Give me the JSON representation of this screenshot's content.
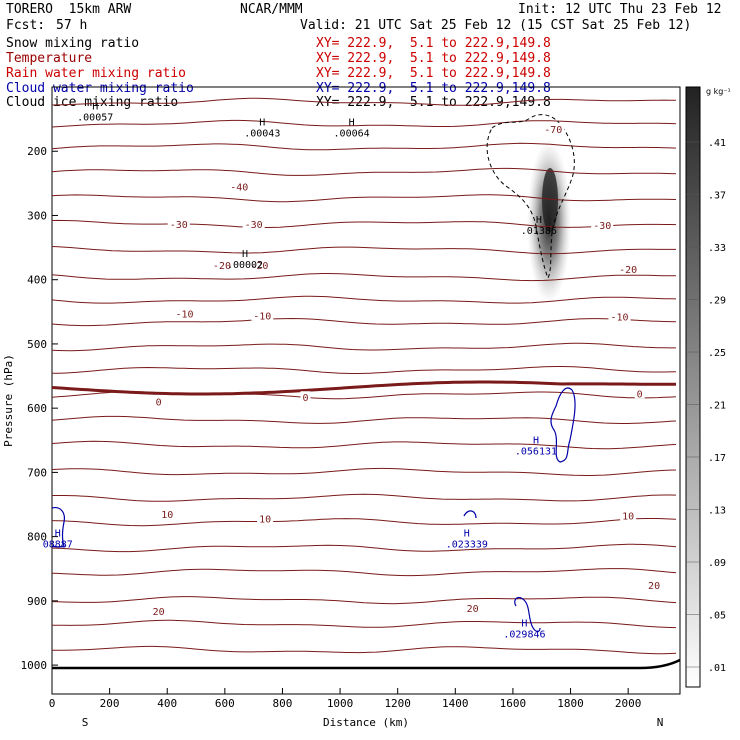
{
  "header": {
    "model": "TORERO  15km ARW",
    "org": "NCAR/MMM",
    "init": "Init: 12 UTC Thu 23 Feb 12",
    "fcst_label": "Fcst:",
    "fcst_value": "57 h",
    "valid": "Valid: 21 UTC Sat 25 Feb 12 (15 CST Sat 25 Feb 12)"
  },
  "fields": [
    {
      "name": "Snow mixing ratio",
      "xy": "XY= 222.9,  5.1 to 222.9,149.8",
      "name_color": "#000000",
      "xy_color": "#cc0000"
    },
    {
      "name": "Temperature",
      "xy": "XY= 222.9,  5.1 to 222.9,149.8",
      "name_color": "#990000",
      "xy_color": "#cc0000"
    },
    {
      "name": "Rain water mixing ratio",
      "xy": "XY= 222.9,  5.1 to 222.9,149.8",
      "name_color": "#cc0000",
      "xy_color": "#cc0000"
    },
    {
      "name": "Cloud water mixing ratio",
      "xy": "XY= 222.9,  5.1 to 222.9,149.8",
      "name_color": "#0000aa",
      "xy_color": "#0000aa"
    },
    {
      "name": "Cloud ice mixing ratio",
      "xy": "XY= 222.9,  5.1 to 222.9,149.8",
      "name_color": "#000000",
      "xy_color": "#000000"
    }
  ],
  "chart_data": {
    "type": "cross-section",
    "xlabel": "Distance (km)",
    "ylabel": "Pressure (hPa)",
    "xlim": [
      0,
      2180
    ],
    "ylim": [
      1045,
      100
    ],
    "x_ticks": [
      0,
      200,
      400,
      600,
      800,
      1000,
      1200,
      1400,
      1600,
      1800,
      2000
    ],
    "y_ticks": [
      200,
      300,
      400,
      500,
      600,
      700,
      800,
      900,
      1000
    ],
    "x_end_labels": {
      "left": "S",
      "right": "N"
    },
    "colorbar": {
      "units": "g kg⁻¹",
      "ticks": [
        ".41",
        ".37",
        ".33",
        ".29",
        ".25",
        ".21",
        ".17",
        ".13",
        ".09",
        ".05",
        ".01"
      ]
    },
    "isotherm_labels": [
      {
        "x": 1740,
        "p": 165,
        "t": "-70"
      },
      {
        "x": 650,
        "p": 255,
        "t": "-40"
      },
      {
        "x": 440,
        "p": 313,
        "t": "-30"
      },
      {
        "x": 700,
        "p": 313,
        "t": "-30"
      },
      {
        "x": 1910,
        "p": 315,
        "t": "-30"
      },
      {
        "x": 590,
        "p": 377,
        "t": "-20"
      },
      {
        "x": 720,
        "p": 377,
        "t": "-20"
      },
      {
        "x": 2000,
        "p": 383,
        "t": "-20"
      },
      {
        "x": 460,
        "p": 453,
        "t": "-10"
      },
      {
        "x": 730,
        "p": 456,
        "t": "-10"
      },
      {
        "x": 1970,
        "p": 457,
        "t": "-10"
      },
      {
        "x": 370,
        "p": 590,
        "t": "0"
      },
      {
        "x": 880,
        "p": 583,
        "t": "0"
      },
      {
        "x": 2040,
        "p": 577,
        "t": "0"
      },
      {
        "x": 400,
        "p": 765,
        "t": "10"
      },
      {
        "x": 740,
        "p": 772,
        "t": "10"
      },
      {
        "x": 2000,
        "p": 767,
        "t": "10"
      },
      {
        "x": 370,
        "p": 916,
        "t": "20"
      },
      {
        "x": 1460,
        "p": 911,
        "t": "20"
      },
      {
        "x": 2090,
        "p": 875,
        "t": "20"
      }
    ],
    "max_labels": [
      {
        "x": 150,
        "p": 135,
        "h": "H",
        "v": ".00057",
        "color": "#000000"
      },
      {
        "x": 730,
        "p": 160,
        "h": "H",
        "v": ".00043",
        "color": "#000000"
      },
      {
        "x": 1040,
        "p": 160,
        "h": "H",
        "v": ".00064",
        "color": "#000000"
      },
      {
        "x": 1690,
        "p": 312,
        "h": "H",
        "v": ".01386",
        "color": "#000000"
      },
      {
        "x": 670,
        "p": 365,
        "h": "H",
        "v": ".00002",
        "color": "#000000"
      },
      {
        "x": 1680,
        "p": 655,
        "h": "H",
        "v": ".056131",
        "color": "#0000aa"
      },
      {
        "x": 20,
        "p": 800,
        "h": "H",
        "v": "08887",
        "color": "#0000aa"
      },
      {
        "x": 1440,
        "p": 800,
        "h": "H",
        "v": ".023339",
        "color": "#0000aa"
      },
      {
        "x": 1640,
        "p": 940,
        "h": "H",
        "v": ".029846",
        "color": "#0000aa"
      }
    ]
  }
}
